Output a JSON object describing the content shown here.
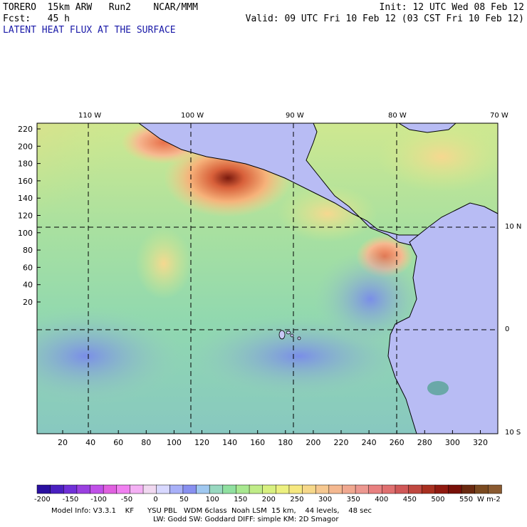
{
  "header": {
    "model": "TORERO  15km ARW   Run2    NCAR/MMM",
    "init": "Init: 12 UTC Wed 08 Feb 12",
    "fcst": "Fcst:   45 h",
    "valid": "Valid: 09 UTC Fri 10 Feb 12 (03 CST Fri 10 Feb 12)",
    "field": "LATENT HEAT FLUX AT THE SURFACE"
  },
  "top_lon_labels": [
    "110 W",
    "100 W",
    "90 W",
    "80 W",
    "70 W"
  ],
  "right_lat_labels": [
    "10 N",
    "0",
    "10 S"
  ],
  "left_ticks": [
    "220",
    "200",
    "180",
    "160",
    "140",
    "120",
    "100",
    "80",
    "60",
    "40",
    "20"
  ],
  "bottom_ticks": [
    "20",
    "40",
    "60",
    "80",
    "100",
    "120",
    "140",
    "160",
    "180",
    "200",
    "220",
    "240",
    "260",
    "280",
    "300",
    "320"
  ],
  "colorbar": {
    "labels": [
      "-200",
      "-150",
      "-100",
      "-50",
      "0",
      "50",
      "100",
      "150",
      "200",
      "250",
      "300",
      "350",
      "400",
      "450",
      "500",
      "550"
    ],
    "unit": "W m-2"
  },
  "footer": {
    "line1": "Model Info: V3.3.1    KF      YSU PBL   WDM 6class  Noah LSM  15 km,    44 levels,    48 sec",
    "line2": "LW: Godd SW: Goddard DIFF: simple KM: 2D Smagor"
  }
}
